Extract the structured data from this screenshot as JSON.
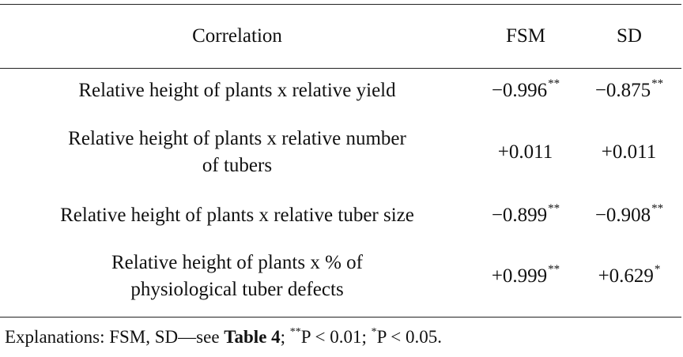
{
  "table": {
    "headers": [
      "Correlation",
      "FSM",
      "SD"
    ],
    "rows": [
      {
        "correlation": "Relative height of plants x relative yield",
        "fsm": "−0.996",
        "fsm_sig": "**",
        "sd": "−0.875",
        "sd_sig": "**"
      },
      {
        "correlation": "Relative height of plants x relative number of tubers",
        "fsm": "+0.011",
        "fsm_sig": "",
        "sd": "+0.011",
        "sd_sig": ""
      },
      {
        "correlation": "Relative height of plants x relative tuber size",
        "fsm": "−0.899",
        "fsm_sig": "**",
        "sd": "−0.908",
        "sd_sig": "**"
      },
      {
        "correlation": "Relative height of plants x % of physiological tuber defects",
        "fsm": "+0.999",
        "fsm_sig": "**",
        "sd": "+0.629",
        "sd_sig": "*"
      }
    ]
  },
  "footnote": {
    "prefix": "Explanations: FSM, SD—see ",
    "table_ref": "Table 4",
    "sep1": "; ",
    "sig1_mark": "**",
    "sig1_text": "P < 0.01; ",
    "sig2_mark": "*",
    "sig2_text": "P < 0.05."
  }
}
